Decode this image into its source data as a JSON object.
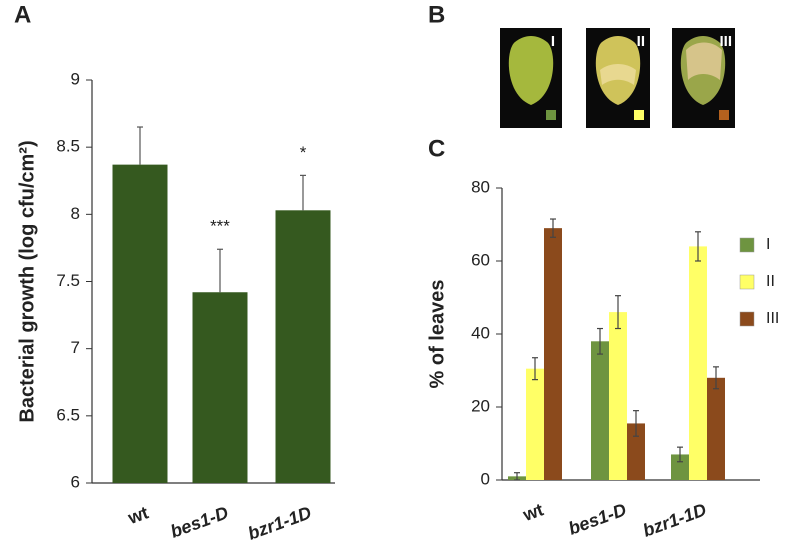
{
  "chart_data": [
    {
      "type": "bar",
      "panel_label": "A",
      "ylabel": "Bacterial growth (log cfu/cm²)",
      "categories": [
        "wt",
        "bes1-D",
        "bzr1-1D"
      ],
      "values": [
        8.37,
        7.42,
        8.03
      ],
      "errors": [
        0.28,
        0.32,
        0.26
      ],
      "value_labels": [
        null,
        "***",
        "*"
      ],
      "color": "#35591f",
      "ylim": [
        6,
        9
      ],
      "yticks": [
        6,
        6.5,
        7,
        7.5,
        8,
        8.5,
        9
      ]
    },
    {
      "type": "grouped-bar",
      "panel_label": "C",
      "ylabel": "% of leaves",
      "categories": [
        "wt",
        "bes1-D",
        "bzr1-1D"
      ],
      "series": [
        {
          "name": "I",
          "color": "#6e9440",
          "values": [
            1,
            38,
            7
          ],
          "errors": [
            1,
            3.5,
            2
          ]
        },
        {
          "name": "II",
          "color": "#ffff66",
          "values": [
            30.5,
            46,
            64
          ],
          "errors": [
            3,
            4.5,
            4
          ]
        },
        {
          "name": "III",
          "color": "#8b4a1c",
          "values": [
            69,
            15.5,
            28
          ],
          "errors": [
            2.5,
            3.5,
            3
          ]
        }
      ],
      "ylim": [
        0,
        80
      ],
      "yticks": [
        0,
        20,
        40,
        60,
        80
      ],
      "legend": "right"
    }
  ],
  "images": {
    "panel_label": "B",
    "labels": [
      "I",
      "II",
      "III"
    ]
  }
}
